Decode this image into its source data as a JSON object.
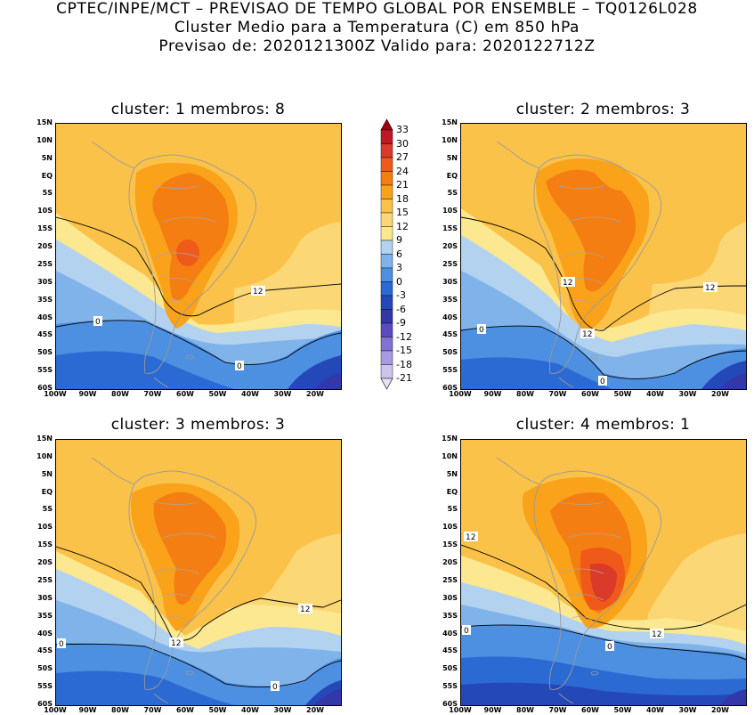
{
  "header": {
    "line1": "CPTEC/INPE/MCT – PREVISAO DE TEMPO GLOBAL POR ENSEMBLE – TQ0126L028",
    "line2": "Cluster Medio para a Temperatura (C) em 850 hPa",
    "line3": "Previsao de: 2020121300Z   Valido para: 2020122712Z"
  },
  "axes": {
    "lat_ticks": [
      "15N",
      "10N",
      "5N",
      "EQ",
      "5S",
      "10S",
      "15S",
      "20S",
      "25S",
      "30S",
      "35S",
      "40S",
      "45S",
      "50S",
      "55S",
      "60S"
    ],
    "lon_ticks": [
      "100W",
      "90W",
      "80W",
      "70W",
      "60W",
      "50W",
      "40W",
      "30W",
      "20W"
    ]
  },
  "colorbar": {
    "levels": [
      "33",
      "30",
      "27",
      "24",
      "21",
      "18",
      "15",
      "12",
      "9",
      "6",
      "3",
      "0",
      "-3",
      "-6",
      "-9",
      "-12",
      "-15",
      "-18",
      "-21"
    ],
    "colors": [
      "#a30010",
      "#c01822",
      "#d93a2a",
      "#ef5a1a",
      "#f57e12",
      "#f9a21a",
      "#fbc24a",
      "#fbd776",
      "#fbe890",
      "#b2d2f0",
      "#7fb3ea",
      "#4d8fe0",
      "#2b6ad2",
      "#2448b8",
      "#3238a8",
      "#5a4cc0",
      "#8272d2",
      "#a89ae0",
      "#cdc4ee",
      "#e8e2f6"
    ],
    "colors_note": "top triangle to bottom triangle"
  },
  "panels": [
    {
      "title": "cluster: 1   membros: 8",
      "contour_labels": [
        "12",
        "0",
        "0"
      ]
    },
    {
      "title": "cluster: 2   membros: 3",
      "contour_labels": [
        "12",
        "12",
        "12",
        "0",
        "0"
      ]
    },
    {
      "title": "cluster: 3   membros: 3",
      "contour_labels": [
        "12",
        "12",
        "0",
        "0"
      ]
    },
    {
      "title": "cluster: 4   membros: 1",
      "contour_labels": [
        "12",
        "12",
        "0",
        "0"
      ]
    }
  ]
}
